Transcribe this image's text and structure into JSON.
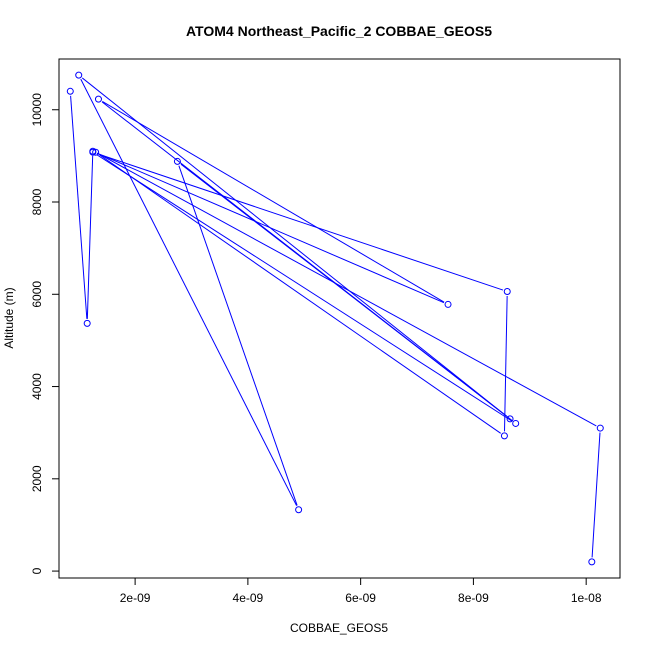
{
  "chart_data": {
    "type": "line",
    "title": "ATOM4 Northeast_Pacific_2 COBBAE_GEOS5",
    "xlabel": "COBBAE_GEOS5",
    "ylabel": "Altitude (m)",
    "xlim": [
      6.5e-10,
      1.06e-08
    ],
    "ylim": [
      -150,
      11100
    ],
    "x_ticks": [
      {
        "value": 2e-09,
        "label": "2e-09"
      },
      {
        "value": 4e-09,
        "label": "4e-09"
      },
      {
        "value": 6e-09,
        "label": "6e-09"
      },
      {
        "value": 8e-09,
        "label": "8e-09"
      },
      {
        "value": 1e-08,
        "label": "1e-08"
      }
    ],
    "y_ticks": [
      {
        "value": 0,
        "label": "0"
      },
      {
        "value": 2000,
        "label": "2000"
      },
      {
        "value": 4000,
        "label": "4000"
      },
      {
        "value": 6000,
        "label": "6000"
      },
      {
        "value": 8000,
        "label": "8000"
      },
      {
        "value": 10000,
        "label": "10000"
      }
    ],
    "grid": false,
    "series": [
      {
        "color": "#0000ff",
        "marker": "open-circle",
        "x": [
          1.01e-08,
          1.025e-08,
          1.3e-09,
          8.55e-09,
          8.6e-09,
          1.25e-09,
          8.75e-09,
          1e-09,
          4.9e-09,
          2.75e-09,
          8.65e-09,
          1.35e-09,
          7.55e-09,
          1.25e-09,
          1.15e-09,
          8.5e-10
        ],
        "y": [
          200,
          3100,
          9080,
          2930,
          6060,
          9080,
          3200,
          10750,
          1330,
          8880,
          3300,
          10230,
          5780,
          9100,
          5370,
          10400
        ]
      }
    ]
  }
}
